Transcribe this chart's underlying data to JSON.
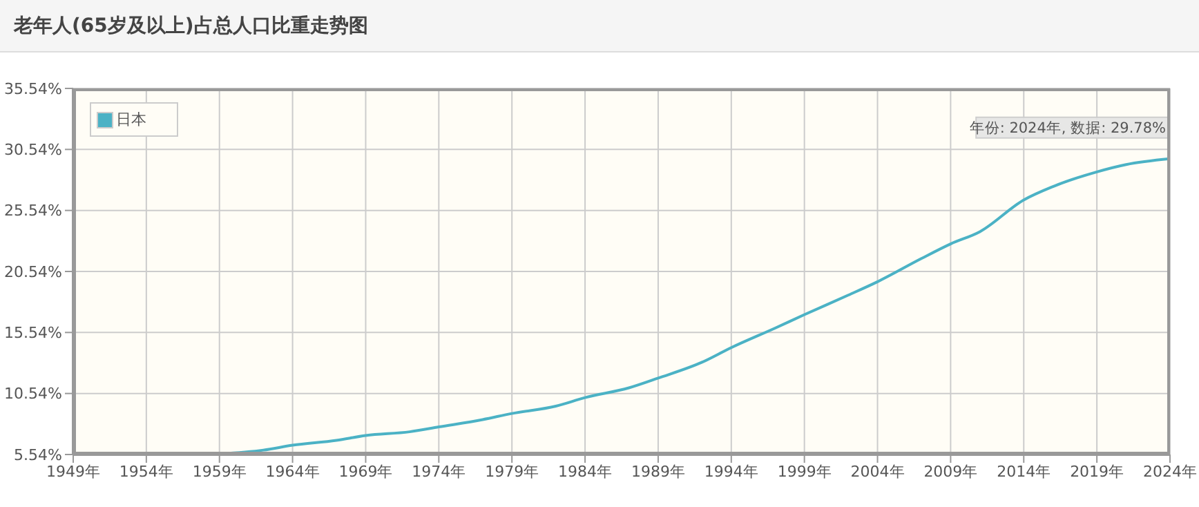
{
  "chart_data": {
    "type": "line",
    "title": "老年人(65岁及以上)占总人口比重走势图",
    "x": [
      1959,
      1962,
      1964,
      1967,
      1969,
      1972,
      1974,
      1977,
      1979,
      1982,
      1984,
      1987,
      1989,
      1992,
      1994,
      1997,
      1999,
      2002,
      2004,
      2007,
      2009,
      2011,
      2014,
      2016,
      2019,
      2021,
      2024
    ],
    "series": [
      {
        "name": "日本",
        "color": "#4bb2c5",
        "values": [
          5.6,
          5.9,
          6.3,
          6.7,
          7.1,
          7.4,
          7.8,
          8.4,
          8.9,
          9.5,
          10.2,
          11.0,
          11.8,
          13.1,
          14.3,
          15.9,
          17.0,
          18.6,
          19.7,
          21.6,
          22.8,
          23.8,
          26.4,
          27.5,
          28.7,
          29.3,
          29.78
        ]
      }
    ],
    "xlim": [
      1949,
      2024
    ],
    "xticks": [
      {
        "value": 1949,
        "label": "1949年"
      },
      {
        "value": 1954,
        "label": "1954年"
      },
      {
        "value": 1959,
        "label": "1959年"
      },
      {
        "value": 1964,
        "label": "1964年"
      },
      {
        "value": 1969,
        "label": "1969年"
      },
      {
        "value": 1974,
        "label": "1974年"
      },
      {
        "value": 1979,
        "label": "1979年"
      },
      {
        "value": 1984,
        "label": "1984年"
      },
      {
        "value": 1989,
        "label": "1989年"
      },
      {
        "value": 1994,
        "label": "1994年"
      },
      {
        "value": 1999,
        "label": "1999年"
      },
      {
        "value": 2004,
        "label": "2004年"
      },
      {
        "value": 2009,
        "label": "2009年"
      },
      {
        "value": 2014,
        "label": "2014年"
      },
      {
        "value": 2019,
        "label": "2019年"
      },
      {
        "value": 2024,
        "label": "2024年"
      }
    ],
    "ylim": [
      5.54,
      35.54
    ],
    "yticks": [
      {
        "value": 5.54,
        "label": "5.54%"
      },
      {
        "value": 10.54,
        "label": "10.54%"
      },
      {
        "value": 15.54,
        "label": "15.54%"
      },
      {
        "value": 20.54,
        "label": "20.54%"
      },
      {
        "value": 25.54,
        "label": "25.54%"
      },
      {
        "value": 30.54,
        "label": "30.54%"
      },
      {
        "value": 35.54,
        "label": "35.54%"
      }
    ],
    "annotations": [
      {
        "text": "年份: 2024年, 数据: 29.78%",
        "x": 2024,
        "y": 29.78
      }
    ],
    "grid": true,
    "legend": "top left",
    "marker": "none",
    "line_style": "solid"
  }
}
